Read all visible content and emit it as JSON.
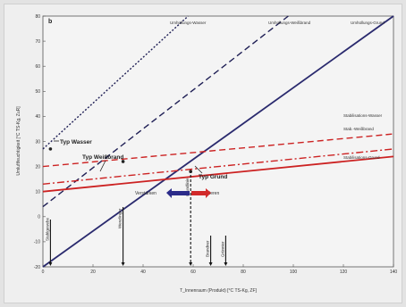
{
  "chart_data": {
    "type": "line",
    "panel_label": "b",
    "xlabel": "T_Innenraum (Produkt) [°C TS-Kg, ZF]",
    "ylabel": "Umluftfeuchtigkeit [°C TS-Kg, ZuR]",
    "xlim": [
      0,
      140
    ],
    "ylim": [
      -20,
      80
    ],
    "x_ticks": [
      0,
      20,
      40,
      60,
      80,
      100,
      120,
      140
    ],
    "y_ticks": [
      -20,
      -10,
      0,
      10,
      20,
      30,
      40,
      50,
      60,
      70,
      80
    ],
    "grid": false,
    "series": [
      {
        "label": "Umhüllungs-Wasser",
        "style": "dotted",
        "color": "#1f1f55",
        "x": [
          0,
          58
        ],
        "y": [
          27,
          80
        ]
      },
      {
        "label": "Umhüllungs-Weißbrand",
        "style": "dashed",
        "color": "#1f1f55",
        "x": [
          0,
          98
        ],
        "y": [
          4,
          80
        ]
      },
      {
        "label": "Umhüllungs-Grund",
        "style": "solid",
        "color": "#2a2a6e",
        "x": [
          0,
          140
        ],
        "y": [
          -20,
          80
        ]
      },
      {
        "label": "Stabilisations-Wasser",
        "style": "dashed",
        "color": "#cc2222",
        "x": [
          0,
          140
        ],
        "y": [
          20,
          33
        ]
      },
      {
        "label": "Stab.-Weißbrand",
        "style": "dashdot",
        "color": "#cc2222",
        "x": [
          0,
          140
        ],
        "y": [
          13,
          27
        ]
      },
      {
        "label": "Stabilisations-Grund",
        "style": "solid",
        "color": "#cc2222",
        "x": [
          0,
          140
        ],
        "y": [
          10,
          24
        ]
      }
    ],
    "bold_labels": [
      "Typ Wasser",
      "Typ Weißbrand",
      "Typ Grund"
    ],
    "arrow_labels": {
      "left": "Verstärken",
      "right": "Stabilisieren"
    },
    "vertical_markers": [
      {
        "label": "Stahlgewebe",
        "x": 3
      },
      {
        "label": "Wenzlinger",
        "x": 32
      },
      {
        "label": "Grundlinie",
        "x": 59
      },
      {
        "label": "Brandner",
        "x": 67
      },
      {
        "label": "Grünnier",
        "x": 73
      }
    ]
  }
}
